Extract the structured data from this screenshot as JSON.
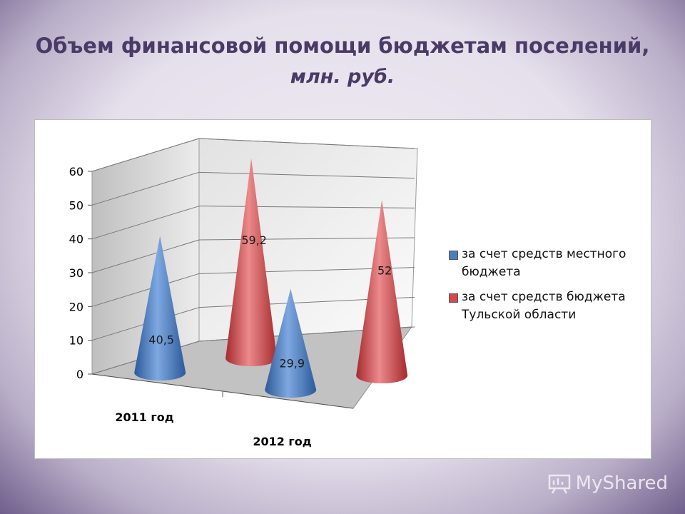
{
  "title": {
    "line1": "Объем финансовой помощи бюджетам поселений,",
    "line2": "млн. руб."
  },
  "watermark": {
    "text": "MyShared",
    "icon": "presentation-board-icon"
  },
  "colors": {
    "series_local": "#4a7ec2",
    "series_region": "#d04a4e",
    "frame": "#6f5f8c"
  },
  "chart_data": {
    "type": "bar",
    "shape": "3d-cone",
    "categories": [
      "2011 год",
      "2012 год"
    ],
    "series": [
      {
        "name": "за счет средств местного бюджета",
        "values": [
          40.5,
          29.9
        ],
        "labels": [
          "40,5",
          "29,9"
        ],
        "color": "#4a7ec2"
      },
      {
        "name": "за счет средств бюджета Тульской области",
        "values": [
          59.2,
          52
        ],
        "labels": [
          "59,2",
          "52"
        ],
        "color": "#d04a4e"
      }
    ],
    "ylim": [
      0,
      60
    ],
    "yticks": [
      "0",
      "10",
      "20",
      "30",
      "40",
      "50",
      "60"
    ],
    "grid": true,
    "legend": "right"
  }
}
